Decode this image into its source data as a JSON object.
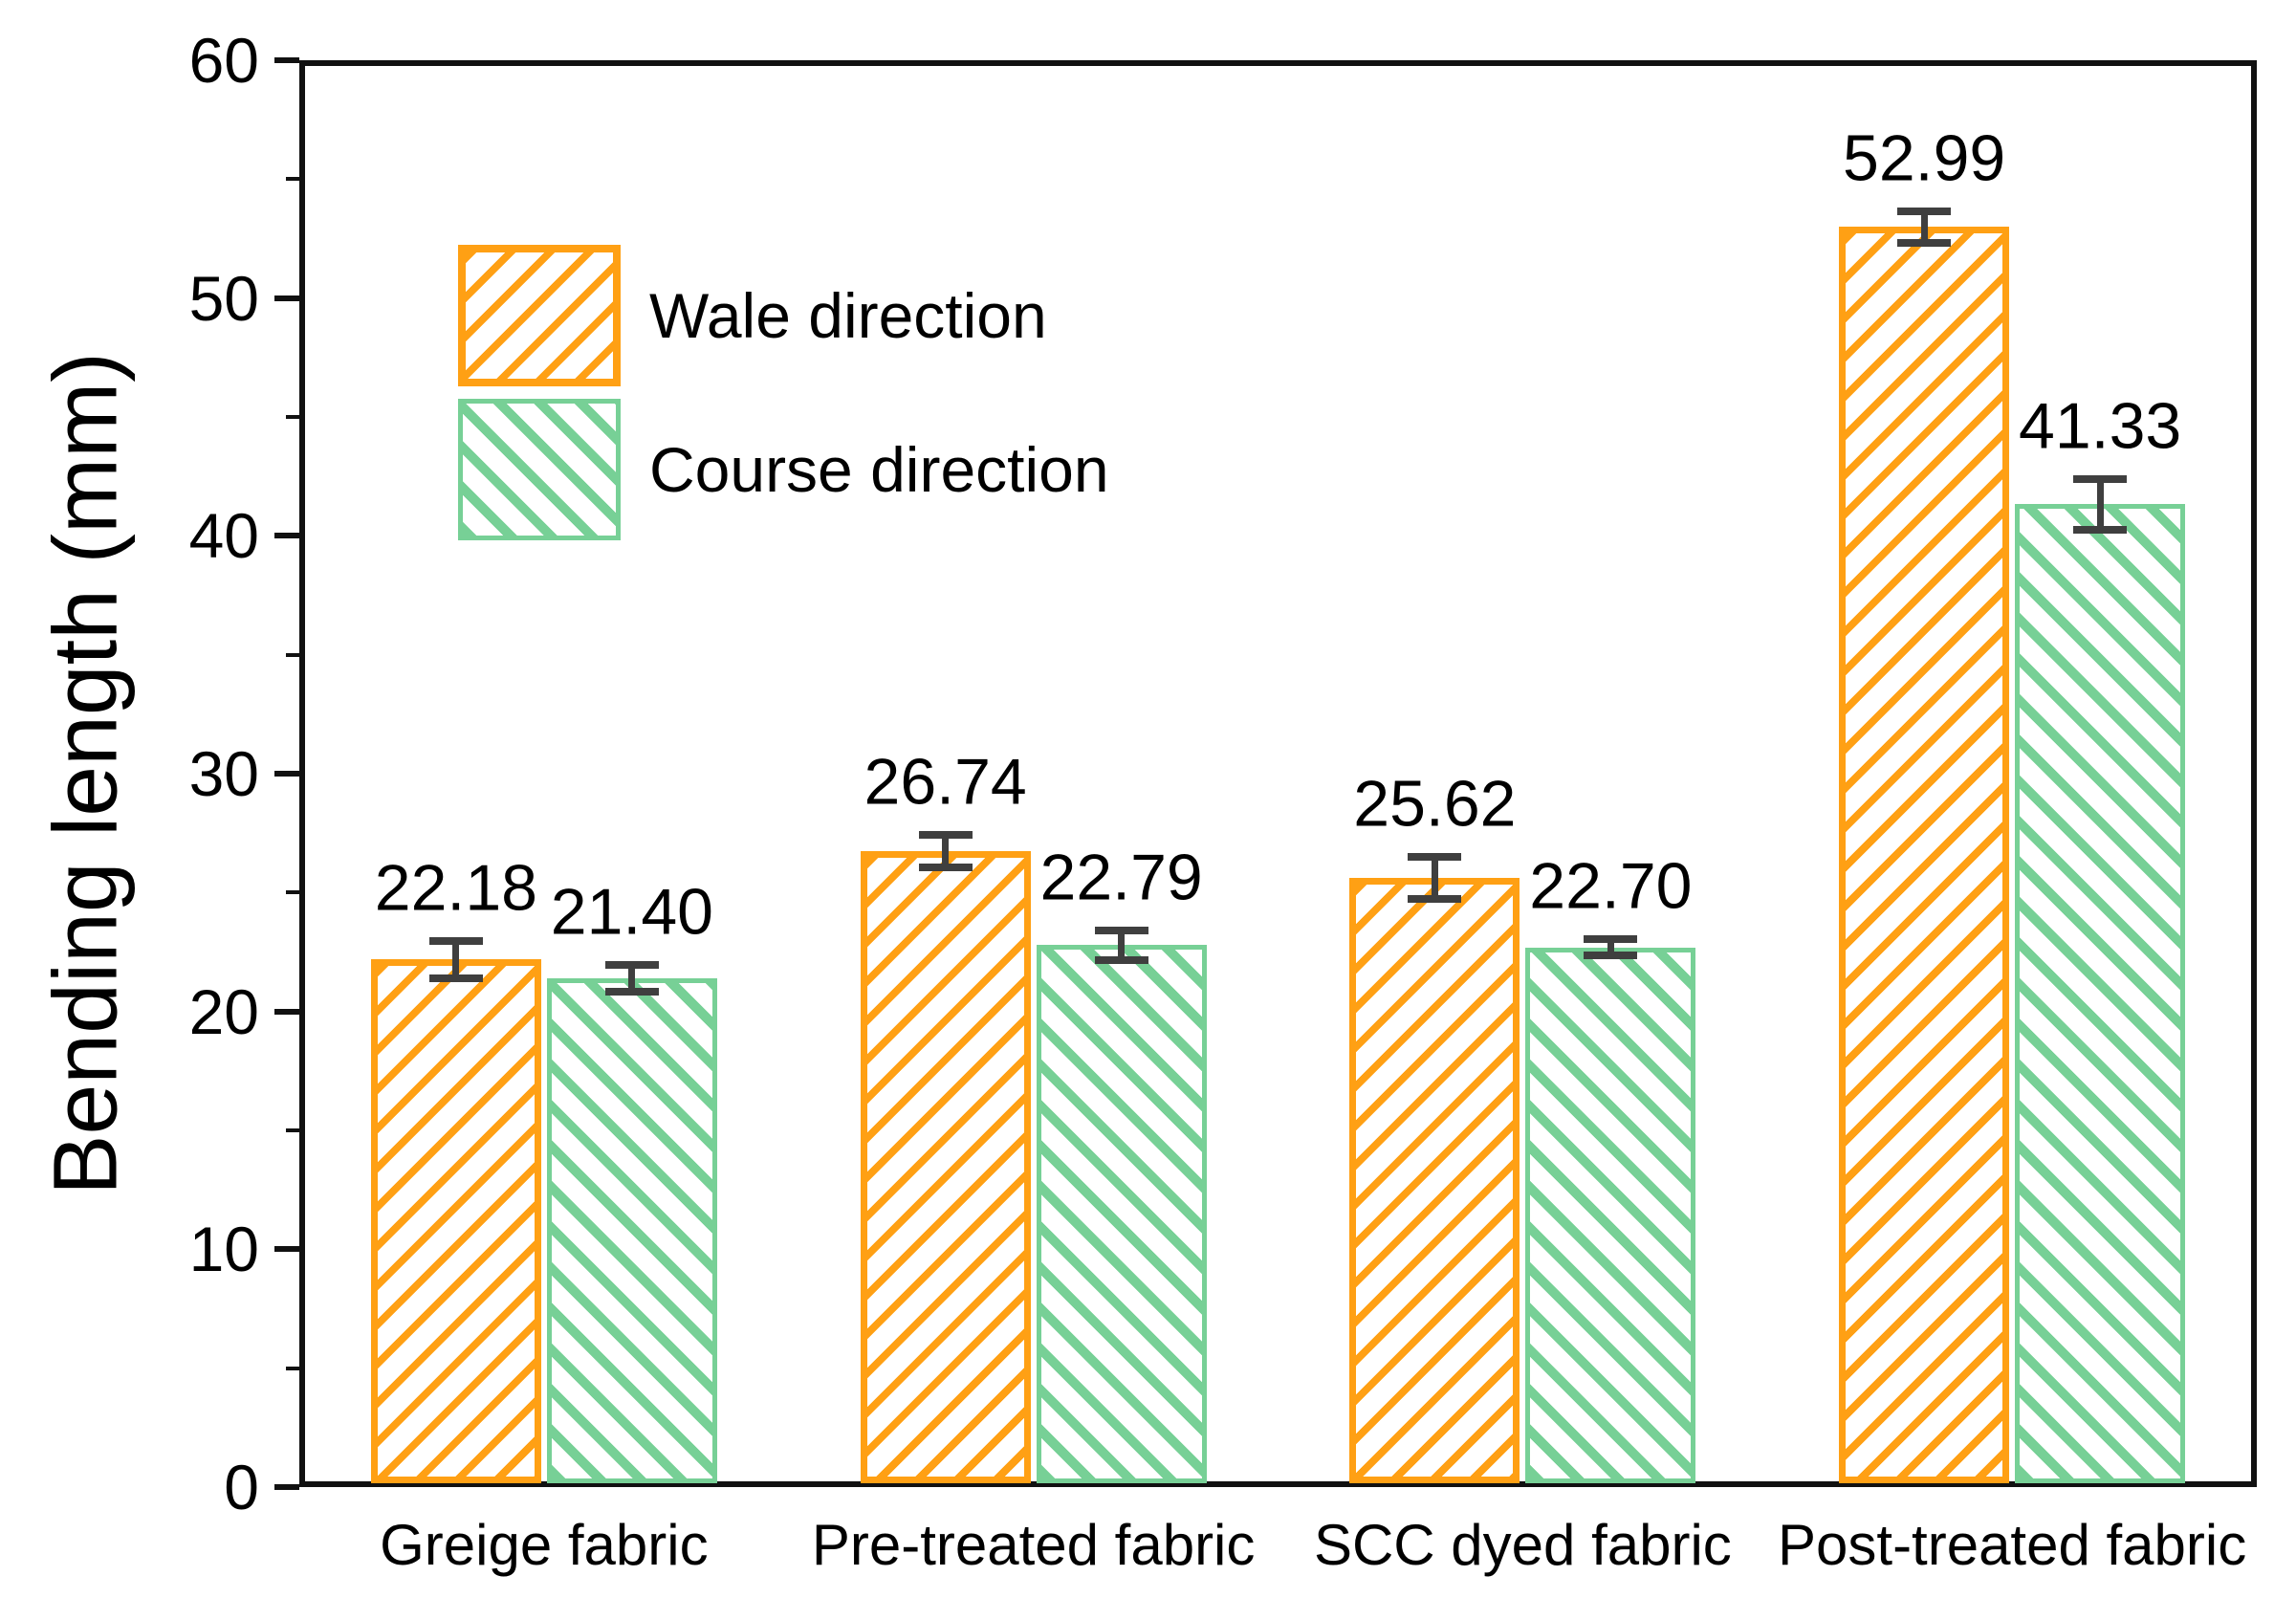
{
  "chart_data": {
    "type": "bar",
    "title": "",
    "ylabel": "Bending length (mm)",
    "xlabel": "",
    "ylim": [
      0,
      60
    ],
    "ytick_step": 10,
    "yminor_step": 5,
    "grid": "off",
    "legend_position": "upper-left",
    "categories": [
      "Greige fabric",
      "Pre-treated fabric",
      "SCC dyed fabric",
      "Post-treated fabric"
    ],
    "series": [
      {
        "name": "Wale direction",
        "color": "#FFA014",
        "hatch": "forward-diagonal",
        "values": [
          22.18,
          26.74,
          25.62,
          52.99
        ],
        "errors": [
          0.68,
          0.55,
          0.75,
          0.55
        ]
      },
      {
        "name": "Course direction",
        "color": "#77D096",
        "hatch": "backward-diagonal",
        "values": [
          21.4,
          22.79,
          22.7,
          41.33
        ],
        "errors": [
          0.45,
          0.5,
          0.22,
          0.95
        ]
      }
    ],
    "error_bar_color": "#3F3F3F",
    "axis_color": "#111111"
  }
}
